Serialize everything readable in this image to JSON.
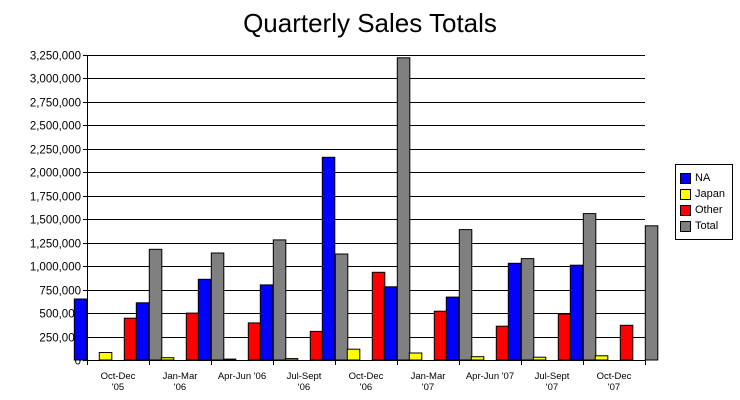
{
  "chart_data": {
    "type": "bar",
    "title": "Quarterly Sales Totals",
    "xlabel": "",
    "ylabel": "",
    "ylim": [
      0,
      3250000
    ],
    "yticks": [
      "0",
      "250,000",
      "500,000",
      "750,000",
      "1,000,000",
      "1,250,000",
      "1,500,000",
      "1,750,000",
      "2,000,000",
      "2,250,000",
      "2,500,000",
      "2,750,000",
      "3,000,000",
      "3,250,000"
    ],
    "grid": "horizontal",
    "legend_position": "right",
    "categories": [
      [
        "Oct-Dec",
        "'05"
      ],
      [
        "Jan-Mar",
        "'06"
      ],
      [
        "Apr-Jun '06",
        ""
      ],
      [
        "Jul-Sept",
        "'06"
      ],
      [
        "Oct-Dec",
        "'06"
      ],
      [
        "Jan-Mar",
        "'07"
      ],
      [
        "Apr-Jun '07",
        ""
      ],
      [
        "Jul-Sept",
        "'07"
      ],
      [
        "Oct-Dec",
        "'07"
      ]
    ],
    "series": [
      {
        "name": "NA",
        "color": "#0000ff",
        "values": [
          650000,
          610000,
          860000,
          800000,
          2160000,
          780000,
          670000,
          1030000,
          1010000
        ]
      },
      {
        "name": "Japan",
        "color": "#ffff00",
        "values": [
          80000,
          25000,
          10000,
          15000,
          115000,
          75000,
          35000,
          30000,
          45000
        ]
      },
      {
        "name": "Other",
        "color": "#ff0000",
        "values": [
          445000,
          500000,
          395000,
          305000,
          935000,
          520000,
          360000,
          490000,
          370000
        ]
      },
      {
        "name": "Total",
        "color": "#808080",
        "values": [
          1180000,
          1140000,
          1280000,
          1130000,
          3220000,
          1390000,
          1080000,
          1560000,
          1430000
        ]
      }
    ]
  }
}
